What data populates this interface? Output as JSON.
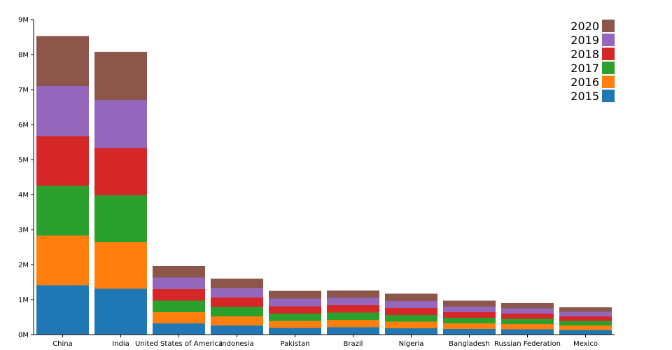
{
  "chart_data": {
    "type": "bar",
    "stacked": true,
    "categories": [
      "China",
      "India",
      "United States of America",
      "Indonesia",
      "Pakistan",
      "Brazil",
      "Nigeria",
      "Bangladesh",
      "Russian Federation",
      "Mexico"
    ],
    "series": [
      {
        "name": "2015",
        "color": "#1f77b4",
        "values": [
          1.41,
          1.31,
          0.32,
          0.26,
          0.19,
          0.21,
          0.18,
          0.16,
          0.15,
          0.13
        ]
      },
      {
        "name": "2016",
        "color": "#ff7f0e",
        "values": [
          1.42,
          1.33,
          0.32,
          0.26,
          0.2,
          0.21,
          0.19,
          0.16,
          0.15,
          0.13
        ]
      },
      {
        "name": "2017",
        "color": "#2ca02c",
        "values": [
          1.42,
          1.34,
          0.33,
          0.27,
          0.21,
          0.21,
          0.19,
          0.16,
          0.15,
          0.13
        ]
      },
      {
        "name": "2018",
        "color": "#d62728",
        "values": [
          1.42,
          1.35,
          0.33,
          0.27,
          0.21,
          0.21,
          0.2,
          0.16,
          0.15,
          0.13
        ]
      },
      {
        "name": "2019",
        "color": "#9467bd",
        "values": [
          1.43,
          1.37,
          0.33,
          0.27,
          0.22,
          0.21,
          0.2,
          0.16,
          0.15,
          0.13
        ]
      },
      {
        "name": "2020",
        "color": "#8c564b",
        "values": [
          1.43,
          1.38,
          0.33,
          0.27,
          0.22,
          0.21,
          0.21,
          0.17,
          0.15,
          0.13
        ]
      }
    ],
    "y_tick_values": [
      0,
      1,
      2,
      3,
      4,
      5,
      6,
      7,
      8,
      9
    ],
    "y_tick_labels": [
      "0M",
      "1M",
      "2M",
      "3M",
      "4M",
      "5M",
      "6M",
      "7M",
      "8M",
      "9M"
    ],
    "ylim": [
      0,
      9
    ],
    "legend_order": [
      "2020",
      "2019",
      "2018",
      "2017",
      "2016",
      "2015"
    ],
    "legend_position": "top-right",
    "grid": false,
    "title": "",
    "xlabel": "",
    "ylabel": ""
  }
}
